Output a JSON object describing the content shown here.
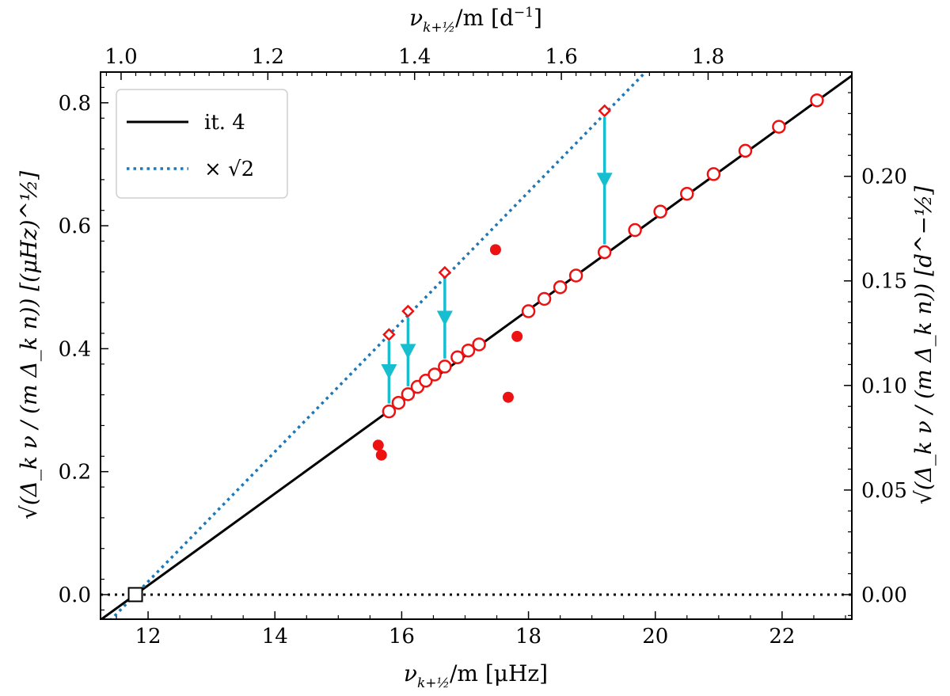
{
  "chart_data": {
    "type": "scatter",
    "x_axis": {
      "label": "ν_{k+½}/m [μHz]",
      "label_parts": {
        "main": "ν",
        "sub": "k+½",
        "rest": "/m [μHz]"
      },
      "range": [
        11.25,
        23.1
      ],
      "ticks": [
        12,
        14,
        16,
        18,
        20,
        22
      ],
      "tick_labels": [
        "12",
        "14",
        "16",
        "18",
        "20",
        "22"
      ]
    },
    "y_axis": {
      "label": "√(Δ_k ν / (m Δ_k n)) [(μHz)^½]",
      "range": [
        -0.04,
        0.85
      ],
      "ticks": [
        0.0,
        0.2,
        0.4,
        0.6,
        0.8
      ],
      "tick_labels": [
        "0.0",
        "0.2",
        "0.4",
        "0.6",
        "0.8"
      ]
    },
    "x2_axis": {
      "label": "ν_{k+½}/m [d⁻¹]",
      "label_parts": {
        "main": "ν",
        "sub": "k+½",
        "rest": "/m [d",
        "sup": "−1",
        "close": "]"
      },
      "ticks": [
        1.0,
        1.2,
        1.4,
        1.6,
        1.8
      ],
      "tick_labels": [
        "1.0",
        "1.2",
        "1.4",
        "1.6",
        "1.8"
      ]
    },
    "y2_axis": {
      "label": "√(Δ_k ν / (m Δ_k n)) [d^−½]",
      "ticks": [
        0.0,
        0.05,
        0.1,
        0.15,
        0.2
      ],
      "tick_labels": [
        "0.00",
        "0.05",
        "0.10",
        "0.15",
        "0.20"
      ]
    },
    "legend": {
      "position": "top-left",
      "entries": [
        {
          "label": "it. 4",
          "style": "solid",
          "color": "#000000"
        },
        {
          "label": "× √2",
          "style": "dotted",
          "color": "#1f77b4"
        }
      ]
    },
    "fit_line": {
      "x0": 11.8,
      "slope": 0.0747
    },
    "zero_line": {
      "y": 0.0,
      "style": "dotted"
    },
    "open_square": {
      "x": 11.8,
      "y": 0.0
    },
    "open_circles": {
      "x": [
        15.8,
        15.95,
        16.1,
        16.25,
        16.38,
        16.52,
        16.68,
        16.88,
        17.05,
        17.22,
        18.0,
        18.25,
        18.5,
        18.75,
        19.2,
        19.68,
        20.08,
        20.5,
        20.92,
        21.42,
        21.95,
        22.55
      ],
      "y": [
        0.298,
        0.312,
        0.326,
        0.338,
        0.348,
        0.358,
        0.371,
        0.386,
        0.397,
        0.407,
        0.461,
        0.481,
        0.5,
        0.519,
        0.557,
        0.593,
        0.623,
        0.652,
        0.684,
        0.722,
        0.761,
        0.804
      ]
    },
    "filled_circles": {
      "x": [
        15.63,
        15.68,
        17.48,
        17.68,
        17.82
      ],
      "y": [
        0.243,
        0.227,
        0.561,
        0.321,
        0.42
      ]
    },
    "diamonds": {
      "x": [
        15.8,
        16.1,
        16.68,
        19.2
      ],
      "y": [
        0.423,
        0.461,
        0.524,
        0.787
      ]
    },
    "arrows": [
      {
        "x": 15.8,
        "y_from": 0.423,
        "y_to": 0.298
      },
      {
        "x": 16.1,
        "y_from": 0.461,
        "y_to": 0.326
      },
      {
        "x": 16.68,
        "y_from": 0.524,
        "y_to": 0.371
      },
      {
        "x": 19.2,
        "y_from": 0.787,
        "y_to": 0.557
      }
    ],
    "colors": {
      "fit": "#000000",
      "scaled": "#1f77b4",
      "points": "#ee1111",
      "arrows": "#17becf",
      "zero": "#000000"
    }
  }
}
